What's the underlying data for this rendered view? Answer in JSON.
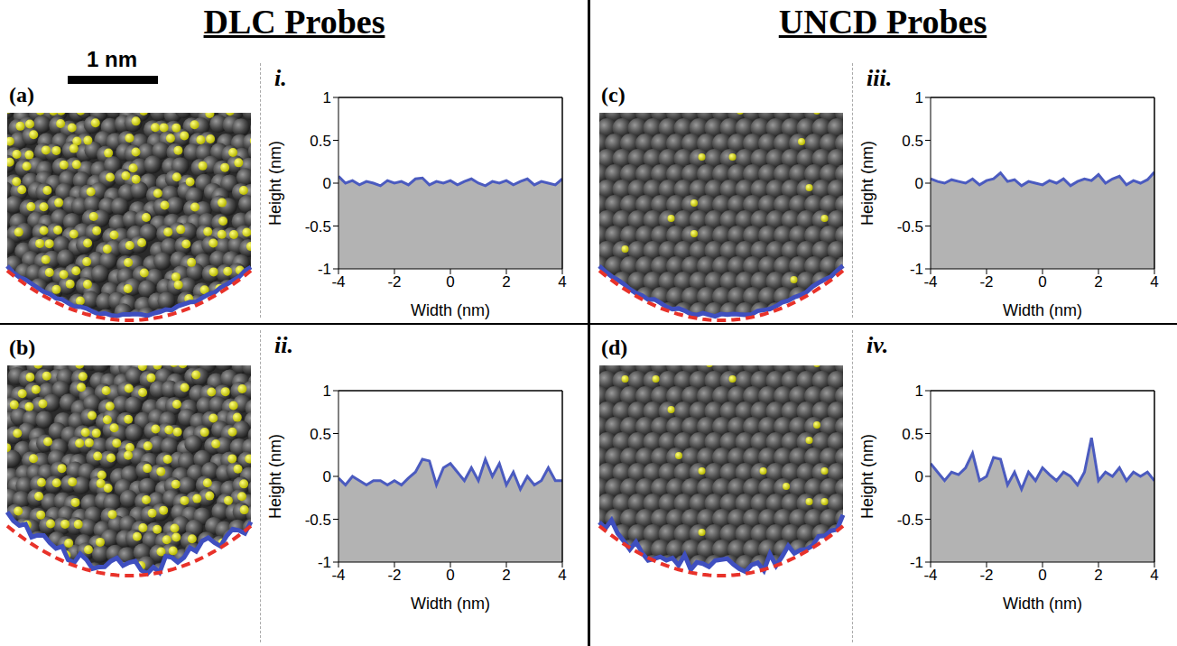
{
  "headings": [
    "DLC Probes",
    "UNCD Probes"
  ],
  "scale_bar": "1 nm",
  "images": [
    {
      "label": "(a)"
    },
    {
      "label": "(b)"
    },
    {
      "label": "(c)"
    },
    {
      "label": "(d)"
    }
  ],
  "chart_data": [
    {
      "type": "line",
      "title": "i.",
      "x_label": "Width (nm)",
      "y_label": "Height (nm)",
      "xlim": [
        -4,
        4
      ],
      "xticks": [
        -4,
        -2,
        0,
        2,
        4
      ],
      "ylim": [
        -1,
        1
      ],
      "yticks": [
        -1,
        -0.5,
        0,
        0.5,
        1
      ],
      "color": "#4b5bbf",
      "x": [
        -4,
        -3.75,
        -3.5,
        -3.25,
        -3,
        -2.75,
        -2.5,
        -2.25,
        -2,
        -1.75,
        -1.5,
        -1.25,
        -1,
        -0.75,
        -0.5,
        -0.25,
        0,
        0.25,
        0.5,
        0.75,
        1,
        1.25,
        1.5,
        1.75,
        2,
        2.25,
        2.5,
        2.75,
        3,
        3.25,
        3.5,
        3.75,
        4
      ],
      "values": [
        0.08,
        0.0,
        0.03,
        -0.02,
        0.02,
        0.0,
        -0.03,
        0.03,
        0.0,
        0.02,
        -0.02,
        0.05,
        0.06,
        -0.02,
        0.02,
        0.0,
        0.03,
        -0.02,
        0.02,
        0.05,
        0.0,
        -0.03,
        0.02,
        0.0,
        0.03,
        -0.02,
        0.02,
        0.05,
        -0.02,
        0.02,
        0.0,
        -0.02,
        0.05
      ]
    },
    {
      "type": "line",
      "title": "ii.",
      "x_label": "Width (nm)",
      "y_label": "Height (nm)",
      "xlim": [
        -4,
        4
      ],
      "xticks": [
        -4,
        -2,
        0,
        2,
        4
      ],
      "ylim": [
        -1,
        1
      ],
      "yticks": [
        -1,
        -0.5,
        0,
        0.5,
        1
      ],
      "color": "#4b5bbf",
      "x": [
        -4,
        -3.75,
        -3.5,
        -3.25,
        -3,
        -2.75,
        -2.5,
        -2.25,
        -2,
        -1.75,
        -1.5,
        -1.25,
        -1,
        -0.75,
        -0.5,
        -0.25,
        0,
        0.25,
        0.5,
        0.75,
        1,
        1.25,
        1.5,
        1.75,
        2,
        2.25,
        2.5,
        2.75,
        3,
        3.25,
        3.5,
        3.75,
        4
      ],
      "values": [
        -0.02,
        -0.1,
        0.0,
        -0.05,
        -0.1,
        -0.05,
        -0.05,
        -0.1,
        -0.05,
        -0.1,
        -0.02,
        0.05,
        0.2,
        0.18,
        -0.1,
        0.1,
        0.15,
        0.05,
        -0.05,
        0.1,
        -0.05,
        0.2,
        0.0,
        0.15,
        -0.1,
        0.05,
        -0.15,
        0.0,
        -0.1,
        -0.05,
        0.1,
        -0.05,
        -0.05
      ]
    },
    {
      "type": "line",
      "title": "iii.",
      "x_label": "Width (nm)",
      "y_label": "Height (nm)",
      "xlim": [
        -4,
        4
      ],
      "xticks": [
        -4,
        -2,
        0,
        2,
        4
      ],
      "ylim": [
        -1,
        1
      ],
      "yticks": [
        -1,
        -0.5,
        0,
        0.5,
        1
      ],
      "color": "#4b5bbf",
      "x": [
        -4,
        -3.75,
        -3.5,
        -3.25,
        -3,
        -2.75,
        -2.5,
        -2.25,
        -2,
        -1.75,
        -1.5,
        -1.25,
        -1,
        -0.75,
        -0.5,
        -0.25,
        0,
        0.25,
        0.5,
        0.75,
        1,
        1.25,
        1.5,
        1.75,
        2,
        2.25,
        2.5,
        2.75,
        3,
        3.25,
        3.5,
        3.75,
        4
      ],
      "values": [
        0.05,
        0.02,
        0.0,
        0.04,
        0.02,
        0.0,
        0.05,
        -0.02,
        0.03,
        0.05,
        0.12,
        0.02,
        0.04,
        -0.03,
        0.02,
        0.0,
        -0.02,
        0.03,
        0.0,
        0.05,
        -0.03,
        0.02,
        0.05,
        0.03,
        0.1,
        0.0,
        0.05,
        0.08,
        -0.02,
        0.03,
        0.0,
        0.04,
        0.13
      ]
    },
    {
      "type": "line",
      "title": "iv.",
      "x_label": "Width (nm)",
      "y_label": "Height (nm)",
      "xlim": [
        -4,
        4
      ],
      "xticks": [
        -4,
        -2,
        0,
        2,
        4
      ],
      "ylim": [
        -1,
        1
      ],
      "yticks": [
        -1,
        -0.5,
        0,
        0.5,
        1
      ],
      "color": "#4b5bbf",
      "x": [
        -4,
        -3.75,
        -3.5,
        -3.25,
        -3,
        -2.75,
        -2.5,
        -2.25,
        -2,
        -1.75,
        -1.5,
        -1.25,
        -1,
        -0.75,
        -0.5,
        -0.25,
        0,
        0.25,
        0.5,
        0.75,
        1,
        1.25,
        1.5,
        1.75,
        2,
        2.25,
        2.5,
        2.75,
        3,
        3.25,
        3.5,
        3.75,
        4
      ],
      "values": [
        0.15,
        0.05,
        -0.05,
        0.05,
        0.02,
        0.1,
        0.27,
        -0.05,
        0.0,
        0.22,
        0.2,
        -0.1,
        0.05,
        -0.15,
        0.05,
        -0.05,
        0.1,
        0.02,
        -0.05,
        0.05,
        0.0,
        -0.1,
        0.05,
        0.45,
        -0.05,
        0.05,
        0.0,
        0.1,
        -0.05,
        0.05,
        0.0,
        0.05,
        -0.05
      ]
    }
  ]
}
